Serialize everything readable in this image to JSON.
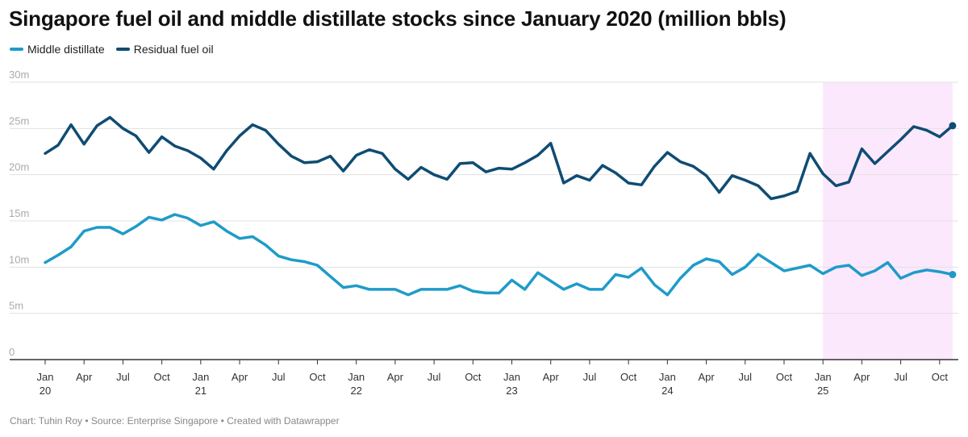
{
  "chart_data": {
    "type": "line",
    "title": "Singapore fuel oil and middle distillate stocks since January 2020 (million bbls)",
    "ylim": [
      0,
      30
    ],
    "yticks": [
      0,
      5,
      10,
      15,
      20,
      25,
      30
    ],
    "ytick_labels": [
      "0",
      "5m",
      "10m",
      "15m",
      "20m",
      "25m",
      "30m"
    ],
    "x_start": "2020-01",
    "x_end": "2025-11",
    "xticks": [
      {
        "month_index": 0,
        "label": "Jan",
        "year": "20"
      },
      {
        "month_index": 3,
        "label": "Apr",
        "year": ""
      },
      {
        "month_index": 6,
        "label": "Jul",
        "year": ""
      },
      {
        "month_index": 9,
        "label": "Oct",
        "year": ""
      },
      {
        "month_index": 12,
        "label": "Jan",
        "year": "21"
      },
      {
        "month_index": 15,
        "label": "Apr",
        "year": ""
      },
      {
        "month_index": 18,
        "label": "Jul",
        "year": ""
      },
      {
        "month_index": 21,
        "label": "Oct",
        "year": ""
      },
      {
        "month_index": 24,
        "label": "Jan",
        "year": "22"
      },
      {
        "month_index": 27,
        "label": "Apr",
        "year": ""
      },
      {
        "month_index": 30,
        "label": "Jul",
        "year": ""
      },
      {
        "month_index": 33,
        "label": "Oct",
        "year": ""
      },
      {
        "month_index": 36,
        "label": "Jan",
        "year": "23"
      },
      {
        "month_index": 39,
        "label": "Apr",
        "year": ""
      },
      {
        "month_index": 42,
        "label": "Jul",
        "year": ""
      },
      {
        "month_index": 45,
        "label": "Oct",
        "year": ""
      },
      {
        "month_index": 48,
        "label": "Jan",
        "year": "24"
      },
      {
        "month_index": 51,
        "label": "Apr",
        "year": ""
      },
      {
        "month_index": 54,
        "label": "Jul",
        "year": ""
      },
      {
        "month_index": 57,
        "label": "Oct",
        "year": ""
      },
      {
        "month_index": 60,
        "label": "Jan",
        "year": "25"
      },
      {
        "month_index": 63,
        "label": "Apr",
        "year": ""
      },
      {
        "month_index": 66,
        "label": "Jul",
        "year": ""
      },
      {
        "month_index": 69,
        "label": "Oct",
        "year": ""
      }
    ],
    "highlight_range": {
      "from_month_index": 60,
      "to_month_index": 70,
      "color": "#fce8fc"
    },
    "series": [
      {
        "name": "Middle distillate",
        "color": "#1f9bc9",
        "values": [
          10.5,
          11.3,
          12.2,
          13.9,
          14.3,
          14.3,
          13.6,
          14.4,
          15.4,
          15.1,
          15.7,
          15.3,
          14.5,
          14.9,
          13.9,
          13.1,
          13.3,
          12.4,
          11.2,
          10.8,
          10.6,
          10.2,
          9.0,
          7.8,
          8.0,
          7.6,
          7.6,
          7.6,
          7.0,
          7.6,
          7.6,
          7.6,
          8.0,
          7.4,
          7.2,
          7.2,
          8.6,
          7.6,
          9.4,
          8.5,
          7.6,
          8.2,
          7.6,
          7.6,
          9.2,
          8.9,
          9.9,
          8.1,
          7.0,
          8.8,
          10.2,
          10.9,
          10.6,
          9.2,
          10.0,
          11.4,
          10.5,
          9.6,
          9.9,
          10.2,
          9.3,
          10.0,
          10.2,
          9.1,
          9.6,
          10.5,
          8.8,
          9.4,
          9.7,
          9.5,
          9.2
        ]
      },
      {
        "name": "Residual fuel oil",
        "color": "#0f4c73",
        "values": [
          22.3,
          23.2,
          25.4,
          23.3,
          25.3,
          26.2,
          25.0,
          24.2,
          22.4,
          24.1,
          23.1,
          22.6,
          21.8,
          20.6,
          22.6,
          24.2,
          25.4,
          24.8,
          23.3,
          22.0,
          21.3,
          21.4,
          22.0,
          20.4,
          22.1,
          22.7,
          22.3,
          20.6,
          19.5,
          20.8,
          20.0,
          19.5,
          21.2,
          21.3,
          20.3,
          20.7,
          20.6,
          21.3,
          22.1,
          23.4,
          19.1,
          19.9,
          19.4,
          21.0,
          20.2,
          19.1,
          18.9,
          20.9,
          22.4,
          21.4,
          20.9,
          19.9,
          18.1,
          19.9,
          19.4,
          18.8,
          17.4,
          17.7,
          18.2,
          22.3,
          20.1,
          18.8,
          19.2,
          22.8,
          21.2,
          22.5,
          23.8,
          25.2,
          24.8,
          24.1,
          25.3
        ]
      }
    ]
  },
  "legend": {
    "middle_label": "Middle distillate",
    "residual_label": "Residual fuel oil"
  },
  "footer": {
    "text": "Chart: Tuhin Roy • Source: Enterprise Singapore • Created with Datawrapper"
  },
  "colors": {
    "middle": "#1f9bc9",
    "residual": "#0f4c73",
    "highlight": "#fce8fc",
    "grid": "#e1e1e1",
    "axis": "#333333",
    "tick_text": "#aaaaaa"
  }
}
